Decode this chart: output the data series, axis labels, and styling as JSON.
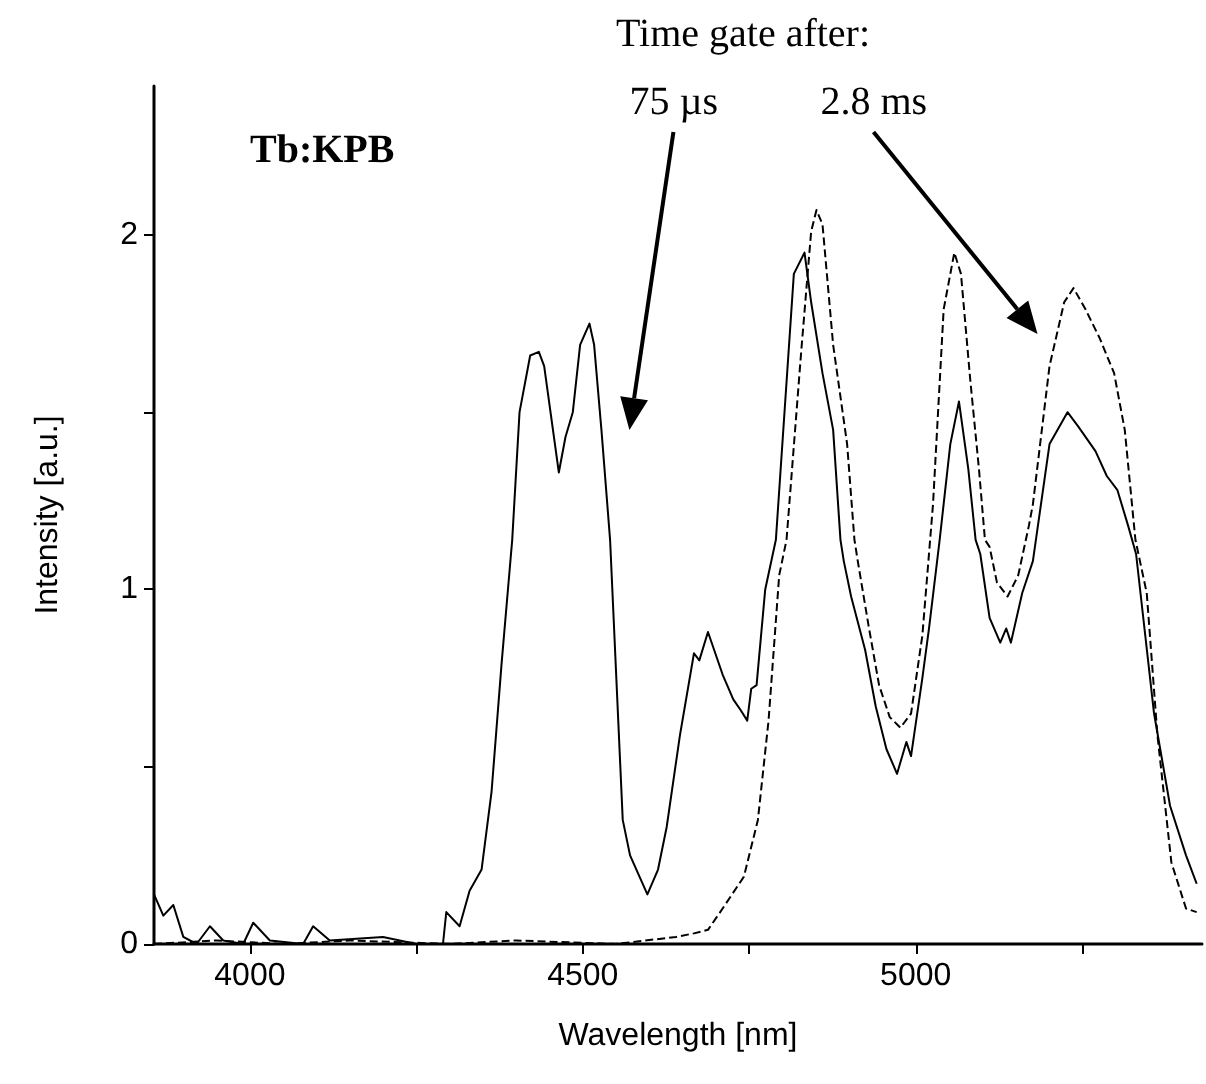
{
  "chart_data": {
    "type": "line",
    "title": "Tb:KPB",
    "xlabel": "Wavelength [nm]",
    "ylabel": "Intensity [a.u.]",
    "xlim": [
      3856,
      5430
    ],
    "ylim": [
      0,
      2.42
    ],
    "xticks": [
      4000,
      {
        "value": 4250,
        "label": null
      },
      4500,
      {
        "value": 4750,
        "label": null
      },
      5000,
      {
        "value": 5250,
        "label": null
      }
    ],
    "yticks": [
      0,
      {
        "value": 0.5,
        "label": null
      },
      1,
      {
        "value": 1.5,
        "label": null
      },
      2
    ],
    "grid": false,
    "marker": "none",
    "annotations": [
      "Time gate after:"
    ],
    "series": [
      {
        "name": "75 µs",
        "color": "#000000",
        "line_style": "solid",
        "x": [
          3856,
          3870,
          3885,
          3900,
          3920,
          3940,
          3960,
          3990,
          4005,
          4030,
          4080,
          4095,
          4120,
          4200,
          4250,
          4290,
          4295,
          4315,
          4330,
          4348,
          4363,
          4378,
          4394,
          4405,
          4421,
          4434,
          4442,
          4464,
          4474,
          4485,
          4496,
          4510,
          4517,
          4528,
          4541,
          4560,
          4571,
          4597,
          4613,
          4626,
          4646,
          4667,
          4675,
          4688,
          4710,
          4726,
          4737,
          4747,
          4753,
          4761,
          4774,
          4790,
          4817,
          4833,
          4843,
          4860,
          4876,
          4887,
          4892,
          4903,
          4924,
          4940,
          4956,
          4972,
          4986,
          4993,
          5010,
          5020,
          5036,
          5052,
          5065,
          5079,
          5090,
          5097,
          5111,
          5127,
          5136,
          5143,
          5160,
          5176,
          5201,
          5228,
          5244,
          5270,
          5287,
          5303,
          5319,
          5331,
          5358,
          5382,
          5406,
          5422
        ],
        "values": [
          0.14,
          0.08,
          0.11,
          0.02,
          0.0,
          0.05,
          0.01,
          0.0,
          0.06,
          0.01,
          0.0,
          0.05,
          0.01,
          0.02,
          0.0,
          0.0,
          0.09,
          0.05,
          0.15,
          0.21,
          0.43,
          0.79,
          1.14,
          1.5,
          1.66,
          1.67,
          1.63,
          1.33,
          1.43,
          1.5,
          1.69,
          1.75,
          1.69,
          1.45,
          1.14,
          0.35,
          0.25,
          0.14,
          0.21,
          0.33,
          0.59,
          0.82,
          0.8,
          0.88,
          0.76,
          0.69,
          0.66,
          0.63,
          0.72,
          0.73,
          1.0,
          1.14,
          1.89,
          1.95,
          1.81,
          1.61,
          1.45,
          1.14,
          1.08,
          0.98,
          0.83,
          0.67,
          0.55,
          0.48,
          0.57,
          0.53,
          0.75,
          0.89,
          1.14,
          1.41,
          1.53,
          1.34,
          1.14,
          1.1,
          0.92,
          0.85,
          0.89,
          0.85,
          0.99,
          1.08,
          1.41,
          1.5,
          1.46,
          1.39,
          1.32,
          1.28,
          1.18,
          1.1,
          0.65,
          0.39,
          0.25,
          0.17
        ]
      },
      {
        "name": "2.8 ms",
        "color": "#000000",
        "line_style": "dashed",
        "x": [
          3856,
          3950,
          4050,
          4150,
          4300,
          4400,
          4550,
          4640,
          4667,
          4688,
          4710,
          4742,
          4763,
          4779,
          4795,
          4806,
          4828,
          4843,
          4851,
          4860,
          4876,
          4897,
          4908,
          4913,
          4929,
          4945,
          4961,
          4977,
          4993,
          5010,
          5026,
          5042,
          5058,
          5068,
          5082,
          5095,
          5104,
          5111,
          5122,
          5138,
          5154,
          5170,
          5176,
          5201,
          5223,
          5237,
          5255,
          5276,
          5298,
          5314,
          5330,
          5347,
          5363,
          5384,
          5406,
          5422
        ],
        "values": [
          0.0,
          0.01,
          0.0,
          0.01,
          0.0,
          0.01,
          0.0,
          0.02,
          0.03,
          0.04,
          0.1,
          0.19,
          0.35,
          0.63,
          1.04,
          1.14,
          1.67,
          2.01,
          2.07,
          2.03,
          1.69,
          1.41,
          1.14,
          1.08,
          0.9,
          0.73,
          0.64,
          0.61,
          0.65,
          0.87,
          1.24,
          1.79,
          1.95,
          1.89,
          1.59,
          1.34,
          1.14,
          1.12,
          1.02,
          0.98,
          1.04,
          1.18,
          1.24,
          1.63,
          1.81,
          1.85,
          1.79,
          1.71,
          1.61,
          1.45,
          1.14,
          0.99,
          0.59,
          0.23,
          0.1,
          0.09
        ]
      }
    ]
  }
}
